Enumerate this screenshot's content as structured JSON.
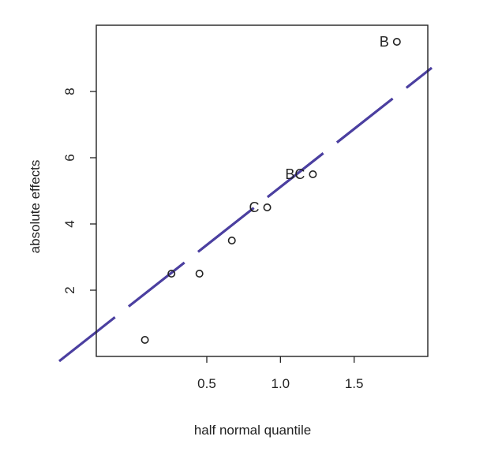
{
  "chart_data": {
    "type": "scatter",
    "xlabel": "half normal quantile",
    "ylabel": "absolute effects",
    "xlim": [
      -0.25,
      2.0
    ],
    "ylim": [
      0,
      10
    ],
    "x_ticks": [
      {
        "value": 0.5,
        "label": "0.5"
      },
      {
        "value": 1.0,
        "label": "1.0"
      },
      {
        "value": 1.5,
        "label": "1.5"
      }
    ],
    "y_ticks": [
      {
        "value": 2,
        "label": "2"
      },
      {
        "value": 4,
        "label": "4"
      },
      {
        "value": 6,
        "label": "6"
      },
      {
        "value": 8,
        "label": "8"
      }
    ],
    "points": [
      {
        "x": 0.08,
        "y": 0.5,
        "label": ""
      },
      {
        "x": 0.26,
        "y": 2.5,
        "label": ""
      },
      {
        "x": 0.45,
        "y": 2.5,
        "label": ""
      },
      {
        "x": 0.67,
        "y": 3.5,
        "label": ""
      },
      {
        "x": 0.91,
        "y": 4.5,
        "label": "C"
      },
      {
        "x": 1.22,
        "y": 5.5,
        "label": "BC"
      },
      {
        "x": 1.79,
        "y": 9.5,
        "label": "B"
      }
    ],
    "reference_line": {
      "style": "dashed",
      "color": "#4b3fa0",
      "from": [
        -0.25,
        -0.1
      ],
      "to": [
        2.0,
        8.6
      ]
    },
    "grid": false,
    "legend": "none"
  }
}
